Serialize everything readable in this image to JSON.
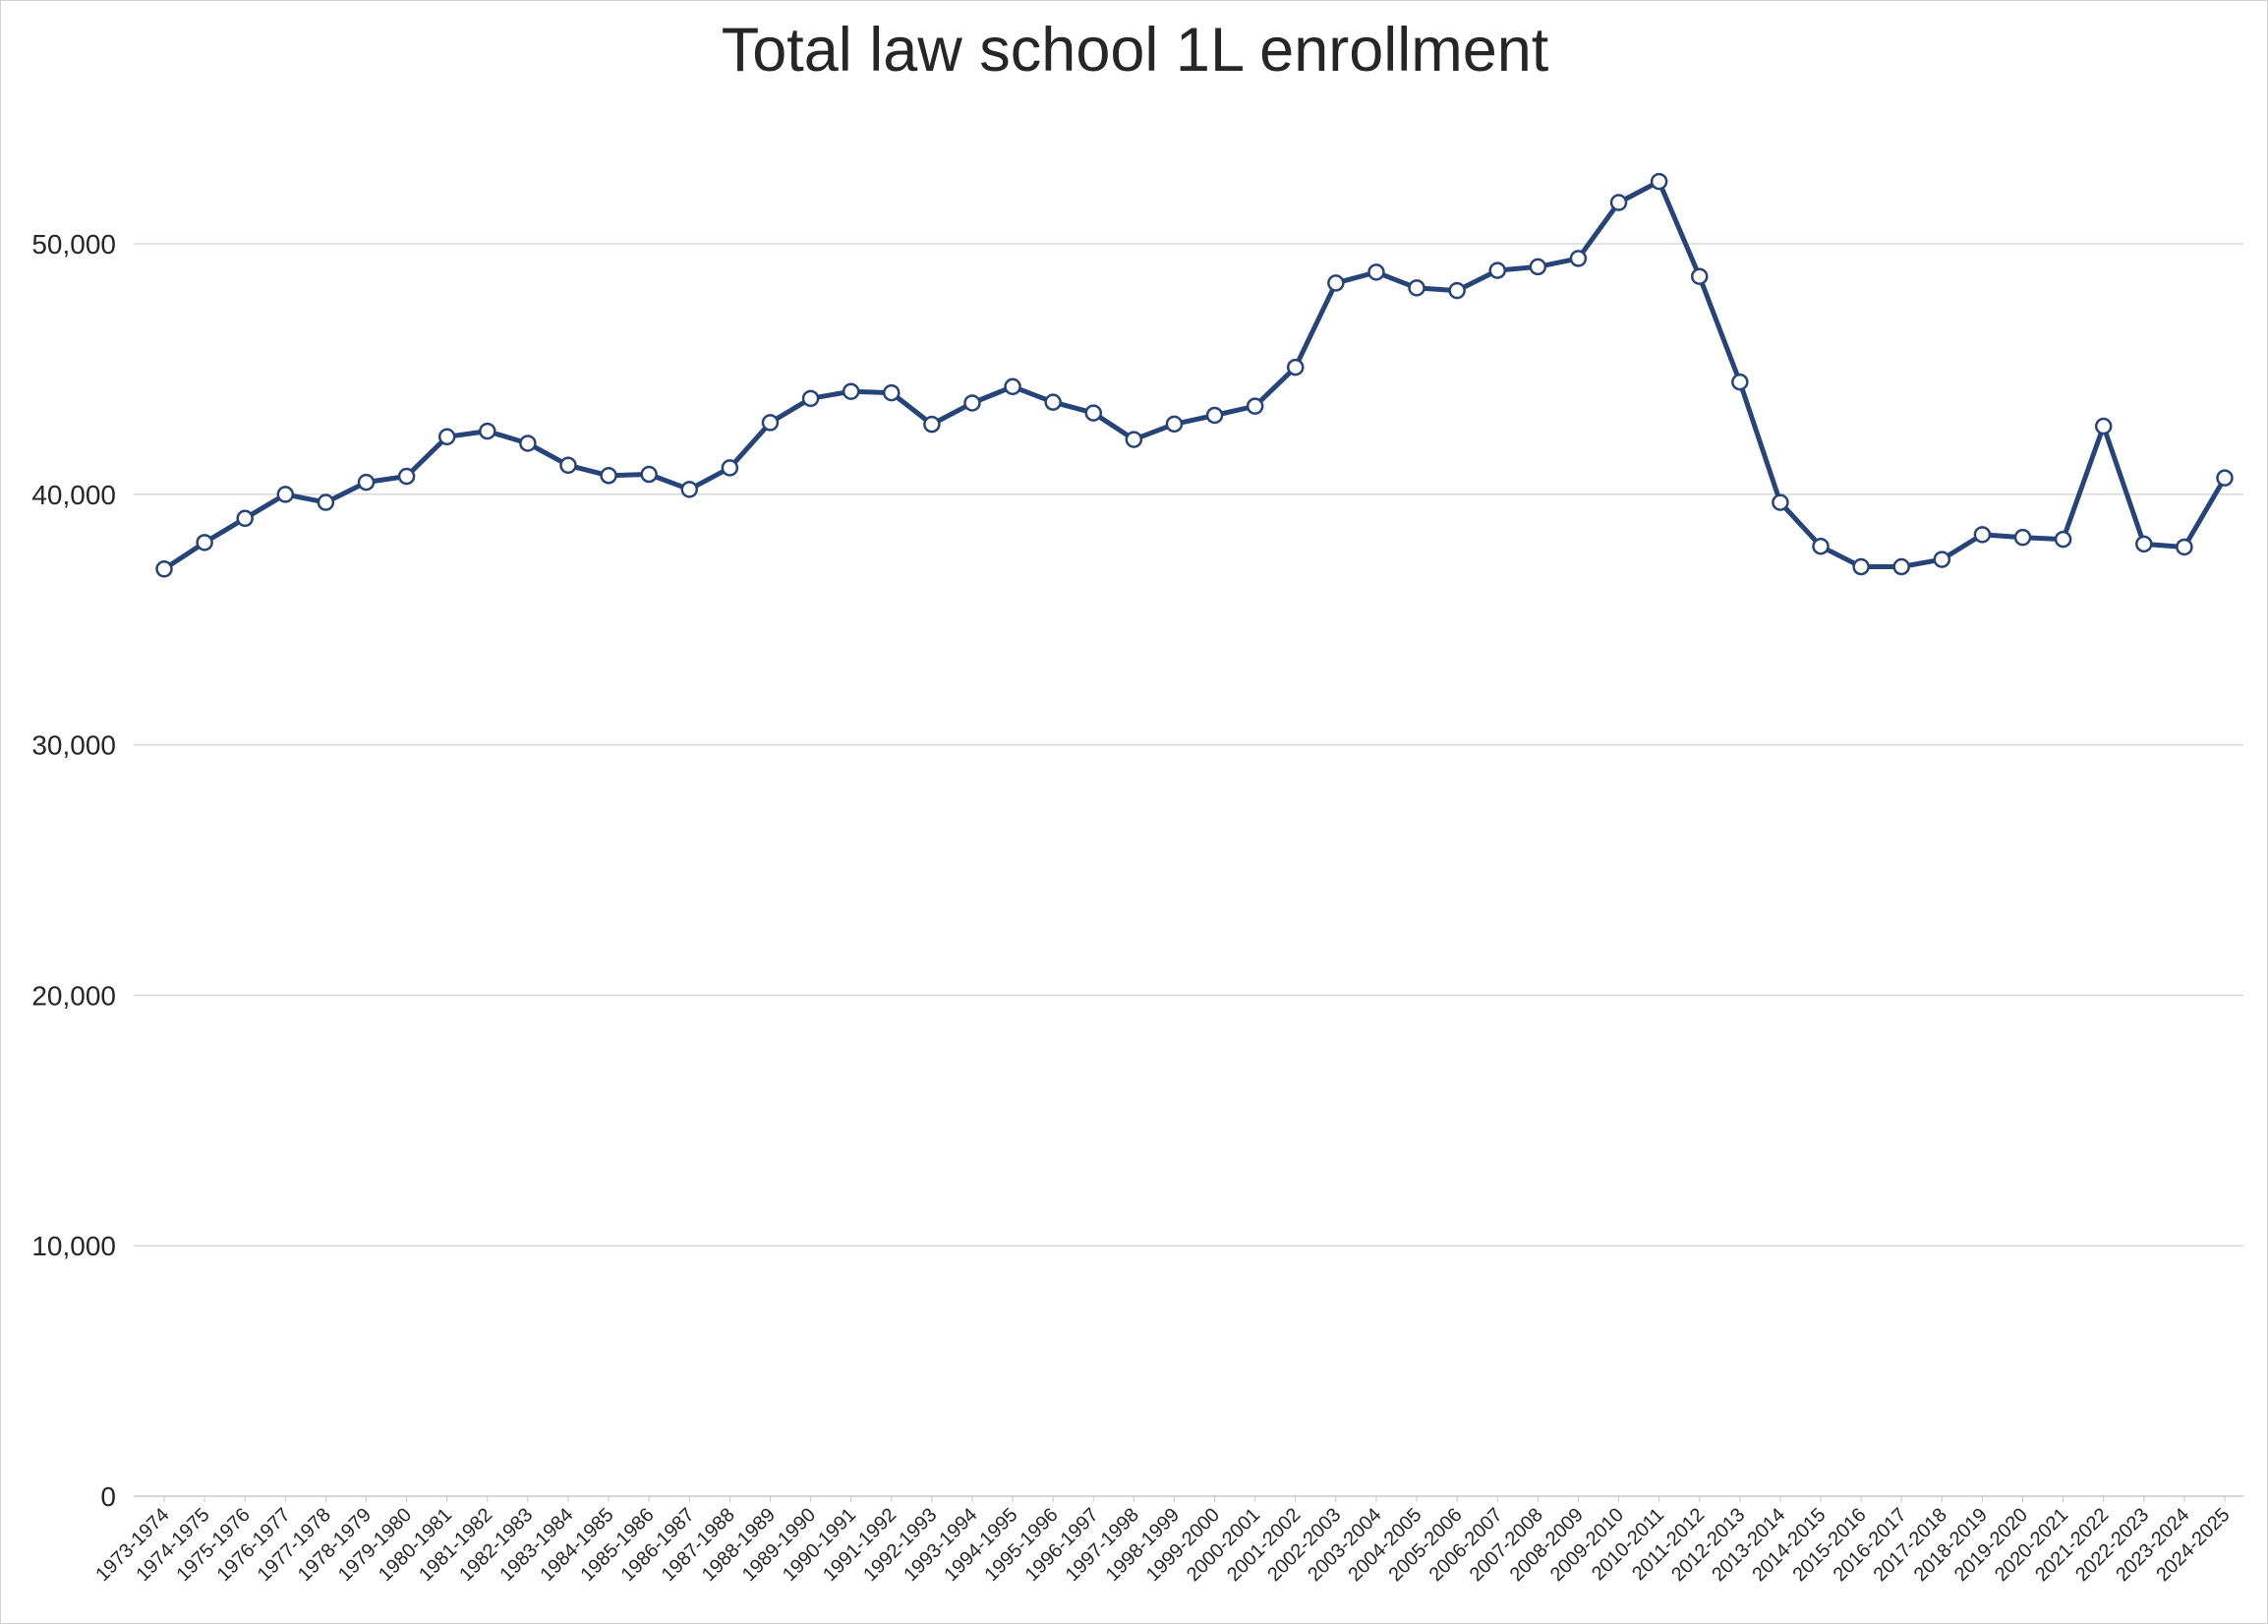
{
  "chart_data": {
    "type": "line",
    "title": "Total law school 1L enrollment",
    "xlabel": "",
    "ylabel": "",
    "ylim": [
      0,
      55000
    ],
    "yticks": [
      0,
      10000,
      20000,
      30000,
      40000,
      50000
    ],
    "ytick_labels": [
      "0",
      "10,000",
      "20,000",
      "30,000",
      "40,000",
      "50,000"
    ],
    "grid": "horizontal",
    "legend": "none",
    "line_color": "#264478",
    "marker_fill": "#ffffff",
    "categories": [
      "1973-1974",
      "1974-1975",
      "1975-1976",
      "1976-1977",
      "1977-1978",
      "1978-1979",
      "1979-1980",
      "1980-1981",
      "1981-1982",
      "1982-1983",
      "1983-1984",
      "1984-1985",
      "1985-1986",
      "1986-1987",
      "1987-1988",
      "1988-1989",
      "1989-1990",
      "1990-1991",
      "1991-1992",
      "1992-1993",
      "1993-1994",
      "1994-1995",
      "1995-1996",
      "1996-1997",
      "1997-1998",
      "1998-1999",
      "1999-2000",
      "2000-2001",
      "2001-2002",
      "2002-2003",
      "2003-2004",
      "2004-2005",
      "2005-2006",
      "2006-2007",
      "2007-2008",
      "2008-2009",
      "2009-2010",
      "2010-2011",
      "2011-2012",
      "2012-2013",
      "2013-2014",
      "2014-2015",
      "2015-2016",
      "2016-2017",
      "2017-2018",
      "2018-2019",
      "2019-2020",
      "2020-2021",
      "2021-2022",
      "2022-2023",
      "2023-2024",
      "2024-2025"
    ],
    "series": [
      {
        "values": [
          37018,
          38074,
          39038,
          39996,
          39676,
          40479,
          40717,
          42296,
          42521,
          42034,
          41159,
          40747,
          40796,
          40195,
          41055,
          42860,
          43826,
          44104,
          44050,
          42793,
          43644,
          44298,
          43676,
          43245,
          42186,
          42804,
          43152,
          43518,
          45070,
          48433,
          48867,
          48239,
          48132,
          48937,
          49082,
          49414,
          51646,
          52488,
          48697,
          44481,
          39675,
          37924,
          37107,
          37107,
          37398,
          38390,
          38279,
          38202,
          42718,
          38016,
          37894,
          40653
        ]
      }
    ]
  }
}
